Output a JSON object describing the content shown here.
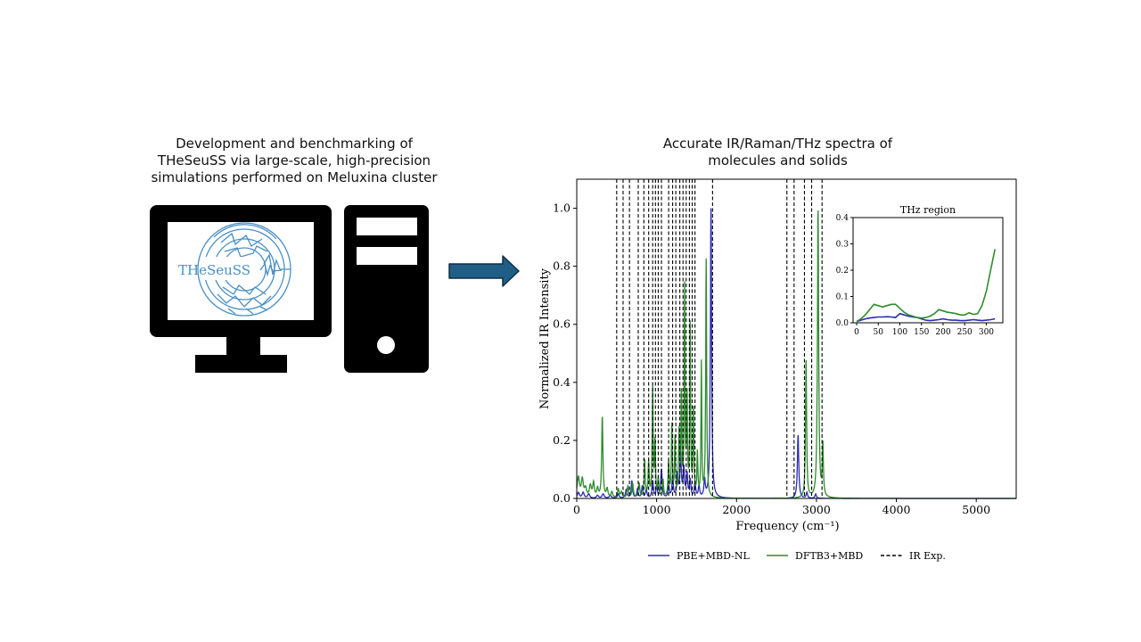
{
  "left_panel": {
    "heading_lines": [
      "Development and benchmarking of",
      "THeSeuSS via large-scale, high-precision",
      "simulations performed on Meluxina cluster"
    ],
    "logo_text": "THeSeuSS",
    "colors": {
      "device": "#000000",
      "logo": "#4a8fc4"
    },
    "icons": [
      "monitor-icon",
      "computer-tower-icon",
      "theseuss-logo-icon"
    ]
  },
  "arrow": {
    "icon": "right-arrow-icon",
    "fill": "#1f5f86",
    "stroke": "#0f2f45"
  },
  "right_panel": {
    "heading_lines": [
      "Accurate IR/Raman/THz spectra of",
      "molecules and solids"
    ]
  },
  "chart_data": [
    {
      "type": "line",
      "xlabel": "Frequency (cm⁻¹)",
      "ylabel": "Normalized IR Intensity",
      "xlim": [
        0,
        5500
      ],
      "ylim": [
        0,
        1.1
      ],
      "xticks": [
        0,
        1000,
        2000,
        3000,
        4000,
        5000
      ],
      "xtick_labels": [
        "0",
        "1000",
        "2000",
        "3000",
        "4000",
        "5000"
      ],
      "yticks": [
        0.0,
        0.2,
        0.4,
        0.6,
        0.8,
        1.0
      ],
      "ytick_labels": [
        "0.0",
        "0.2",
        "0.4",
        "0.6",
        "0.8",
        "1.0"
      ],
      "grid": false,
      "legend_position": "bottom",
      "legend": [
        "PBE+MBD-NL",
        "DFTB3+MBD",
        "IR Exp."
      ],
      "series": [
        {
          "name": "PBE+MBD-NL",
          "color": "#2b2bb8",
          "linewidth": 1.3,
          "peaks": [
            {
              "x": 20,
              "h": 0.02,
              "w": 15
            },
            {
              "x": 80,
              "h": 0.02,
              "w": 15
            },
            {
              "x": 150,
              "h": 0.015,
              "w": 15
            },
            {
              "x": 260,
              "h": 0.01,
              "w": 15
            },
            {
              "x": 330,
              "h": 0.015,
              "w": 15
            },
            {
              "x": 420,
              "h": 0.01,
              "w": 15
            },
            {
              "x": 520,
              "h": 0.015,
              "w": 12
            },
            {
              "x": 620,
              "h": 0.03,
              "w": 12
            },
            {
              "x": 690,
              "h": 0.06,
              "w": 10
            },
            {
              "x": 760,
              "h": 0.03,
              "w": 10
            },
            {
              "x": 820,
              "h": 0.04,
              "w": 10
            },
            {
              "x": 870,
              "h": 0.03,
              "w": 10
            },
            {
              "x": 950,
              "h": 0.06,
              "w": 10
            },
            {
              "x": 1000,
              "h": 0.04,
              "w": 10
            },
            {
              "x": 1060,
              "h": 0.1,
              "w": 10
            },
            {
              "x": 1150,
              "h": 0.04,
              "w": 10
            },
            {
              "x": 1200,
              "h": 0.07,
              "w": 10
            },
            {
              "x": 1260,
              "h": 0.08,
              "w": 10
            },
            {
              "x": 1300,
              "h": 0.15,
              "w": 10
            },
            {
              "x": 1340,
              "h": 0.1,
              "w": 10
            },
            {
              "x": 1380,
              "h": 0.08,
              "w": 10
            },
            {
              "x": 1420,
              "h": 0.06,
              "w": 10
            },
            {
              "x": 1480,
              "h": 0.05,
              "w": 10
            },
            {
              "x": 1530,
              "h": 0.04,
              "w": 10
            },
            {
              "x": 1600,
              "h": 0.06,
              "w": 10
            },
            {
              "x": 1680,
              "h": 1.0,
              "w": 9
            },
            {
              "x": 2770,
              "h": 0.22,
              "w": 10
            },
            {
              "x": 2880,
              "h": 0.02,
              "w": 10
            },
            {
              "x": 2990,
              "h": 0.015,
              "w": 10
            }
          ]
        },
        {
          "name": "DFTB3+MBD",
          "color": "#2e8b2e",
          "linewidth": 1.3,
          "peaks": [
            {
              "x": 20,
              "h": 0.07,
              "w": 18
            },
            {
              "x": 70,
              "h": 0.06,
              "w": 15
            },
            {
              "x": 110,
              "h": 0.03,
              "w": 15
            },
            {
              "x": 170,
              "h": 0.04,
              "w": 15
            },
            {
              "x": 210,
              "h": 0.05,
              "w": 12
            },
            {
              "x": 260,
              "h": 0.03,
              "w": 12
            },
            {
              "x": 320,
              "h": 0.28,
              "w": 9
            },
            {
              "x": 380,
              "h": 0.03,
              "w": 12
            },
            {
              "x": 440,
              "h": 0.02,
              "w": 12
            },
            {
              "x": 520,
              "h": 0.03,
              "w": 12
            },
            {
              "x": 560,
              "h": 0.02,
              "w": 12
            },
            {
              "x": 640,
              "h": 0.04,
              "w": 10
            },
            {
              "x": 700,
              "h": 0.05,
              "w": 10
            },
            {
              "x": 780,
              "h": 0.05,
              "w": 10
            },
            {
              "x": 850,
              "h": 0.13,
              "w": 8
            },
            {
              "x": 900,
              "h": 0.12,
              "w": 8
            },
            {
              "x": 950,
              "h": 0.38,
              "w": 7
            },
            {
              "x": 980,
              "h": 0.19,
              "w": 7
            },
            {
              "x": 1020,
              "h": 0.06,
              "w": 8
            },
            {
              "x": 1080,
              "h": 0.06,
              "w": 8
            },
            {
              "x": 1150,
              "h": 0.12,
              "w": 8
            },
            {
              "x": 1190,
              "h": 0.25,
              "w": 7
            },
            {
              "x": 1230,
              "h": 0.2,
              "w": 7
            },
            {
              "x": 1280,
              "h": 0.22,
              "w": 7
            },
            {
              "x": 1310,
              "h": 0.35,
              "w": 7
            },
            {
              "x": 1350,
              "h": 0.71,
              "w": 6
            },
            {
              "x": 1380,
              "h": 0.33,
              "w": 7
            },
            {
              "x": 1420,
              "h": 0.6,
              "w": 6
            },
            {
              "x": 1460,
              "h": 0.3,
              "w": 7
            },
            {
              "x": 1510,
              "h": 0.15,
              "w": 7
            },
            {
              "x": 1560,
              "h": 0.46,
              "w": 6
            },
            {
              "x": 1620,
              "h": 0.82,
              "w": 7
            },
            {
              "x": 2870,
              "h": 0.48,
              "w": 8
            },
            {
              "x": 3020,
              "h": 1.0,
              "w": 9
            },
            {
              "x": 3080,
              "h": 0.18,
              "w": 8
            }
          ]
        }
      ],
      "reference_lines": {
        "name": "IR Exp.",
        "style": "dashed",
        "color": "#000000",
        "x": [
          500,
          580,
          660,
          770,
          840,
          900,
          950,
          985,
          1020,
          1060,
          1150,
          1200,
          1240,
          1290,
          1330,
          1370,
          1410,
          1445,
          1480,
          1700,
          2630,
          2720,
          2850,
          2940,
          3070
        ]
      },
      "inset": {
        "title": "THz region",
        "xlim": [
          0,
          330
        ],
        "ylim": [
          0,
          0.4
        ],
        "xticks": [
          0,
          50,
          100,
          150,
          200,
          250,
          300
        ],
        "xtick_labels": [
          "0",
          "50",
          "100",
          "150",
          "200",
          "250",
          "300"
        ],
        "yticks": [
          0.0,
          0.1,
          0.2,
          0.3,
          0.4
        ],
        "ytick_labels": [
          "0.0",
          "0.1",
          "0.2",
          "0.3",
          "0.4"
        ],
        "series": [
          {
            "name": "PBE+MBD-NL",
            "color": "#2b2bb8",
            "x": [
              0,
              10,
              20,
              30,
              40,
              50,
              60,
              70,
              80,
              90,
              100,
              110,
              120,
              130,
              140,
              150,
              160,
              170,
              180,
              190,
              200,
              210,
              220,
              230,
              240,
              250,
              260,
              270,
              280,
              290,
              300,
              310,
              320
            ],
            "y": [
              0.005,
              0.01,
              0.015,
              0.018,
              0.02,
              0.022,
              0.022,
              0.023,
              0.022,
              0.02,
              0.035,
              0.03,
              0.025,
              0.022,
              0.02,
              0.015,
              0.01,
              0.008,
              0.01,
              0.012,
              0.015,
              0.012,
              0.01,
              0.01,
              0.008,
              0.008,
              0.01,
              0.012,
              0.01,
              0.008,
              0.01,
              0.012,
              0.015
            ]
          },
          {
            "name": "DFTB3+MBD",
            "color": "#2e8b2e",
            "x": [
              0,
              10,
              20,
              30,
              40,
              50,
              60,
              70,
              80,
              90,
              100,
              110,
              120,
              130,
              140,
              150,
              160,
              170,
              180,
              190,
              200,
              210,
              220,
              230,
              240,
              250,
              260,
              270,
              280,
              290,
              300,
              310,
              320
            ],
            "y": [
              0.005,
              0.015,
              0.03,
              0.05,
              0.07,
              0.065,
              0.06,
              0.065,
              0.07,
              0.07,
              0.055,
              0.04,
              0.03,
              0.025,
              0.02,
              0.018,
              0.02,
              0.025,
              0.035,
              0.05,
              0.045,
              0.04,
              0.038,
              0.035,
              0.03,
              0.03,
              0.038,
              0.032,
              0.035,
              0.065,
              0.12,
              0.2,
              0.28
            ]
          }
        ]
      }
    }
  ]
}
